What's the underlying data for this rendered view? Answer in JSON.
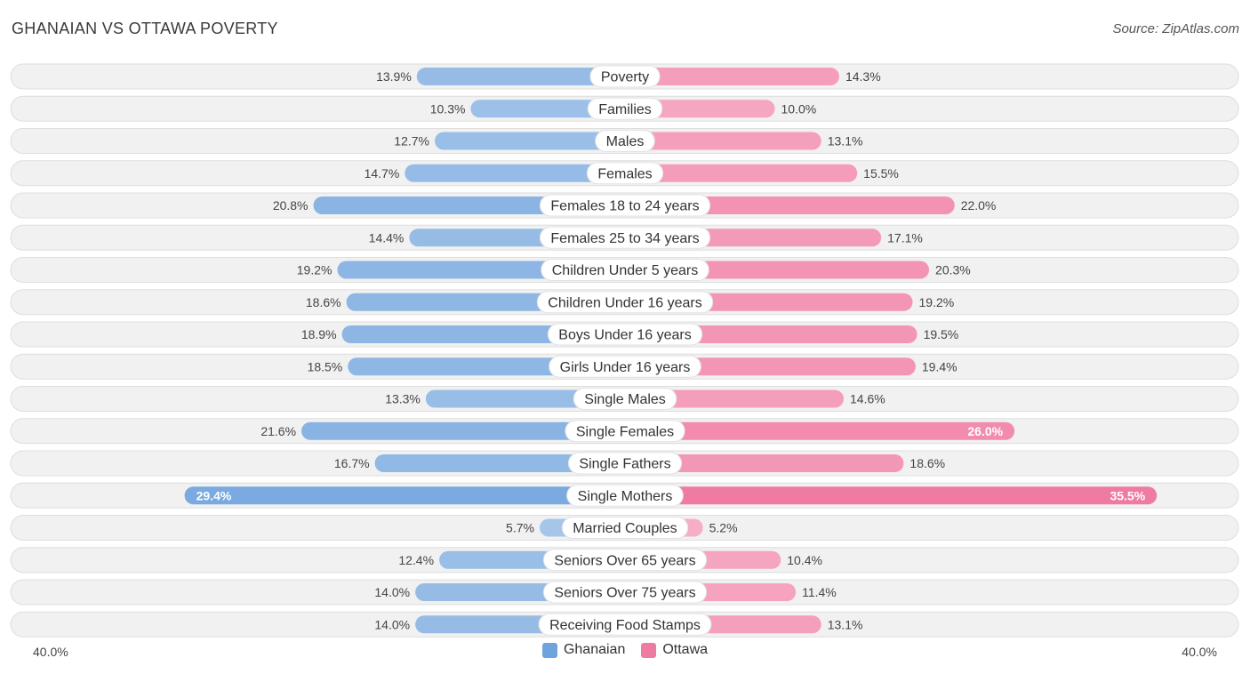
{
  "header": {
    "title": "GHANAIAN VS OTTAWA POVERTY",
    "source": "Source: ZipAtlas.com"
  },
  "axis": {
    "left_label": "40.0%",
    "right_label": "40.0%"
  },
  "legend": {
    "left": "Ghanaian",
    "right": "Ottawa"
  },
  "colors": {
    "left": "#6fa3dd",
    "right": "#f07ba2",
    "row_bg": "#f1f1f1"
  },
  "chart_data": {
    "type": "bar",
    "orientation": "diverging-horizontal",
    "title": "GHANAIAN VS OTTAWA POVERTY",
    "xlim": [
      -40,
      40
    ],
    "categories": [
      "Poverty",
      "Families",
      "Males",
      "Females",
      "Females 18 to 24 years",
      "Females 25 to 34 years",
      "Children Under 5 years",
      "Children Under 16 years",
      "Boys Under 16 years",
      "Girls Under 16 years",
      "Single Males",
      "Single Females",
      "Single Fathers",
      "Single Mothers",
      "Married Couples",
      "Seniors Over 65 years",
      "Seniors Over 75 years",
      "Receiving Food Stamps"
    ],
    "series": [
      {
        "name": "Ghanaian",
        "values": [
          13.9,
          10.3,
          12.7,
          14.7,
          20.8,
          14.4,
          19.2,
          18.6,
          18.9,
          18.5,
          13.3,
          21.6,
          16.7,
          29.4,
          5.7,
          12.4,
          14.0,
          14.0
        ],
        "labels": [
          "13.9%",
          "10.3%",
          "12.7%",
          "14.7%",
          "20.8%",
          "14.4%",
          "19.2%",
          "18.6%",
          "18.9%",
          "18.5%",
          "13.3%",
          "21.6%",
          "16.7%",
          "29.4%",
          "5.7%",
          "12.4%",
          "14.0%",
          "14.0%"
        ]
      },
      {
        "name": "Ottawa",
        "values": [
          14.3,
          10.0,
          13.1,
          15.5,
          22.0,
          17.1,
          20.3,
          19.2,
          19.5,
          19.4,
          14.6,
          26.0,
          18.6,
          35.5,
          5.2,
          10.4,
          11.4,
          13.1
        ],
        "labels": [
          "14.3%",
          "10.0%",
          "13.1%",
          "15.5%",
          "22.0%",
          "17.1%",
          "20.3%",
          "19.2%",
          "19.5%",
          "19.4%",
          "14.6%",
          "26.0%",
          "18.6%",
          "35.5%",
          "5.2%",
          "10.4%",
          "11.4%",
          "13.1%"
        ]
      }
    ]
  }
}
